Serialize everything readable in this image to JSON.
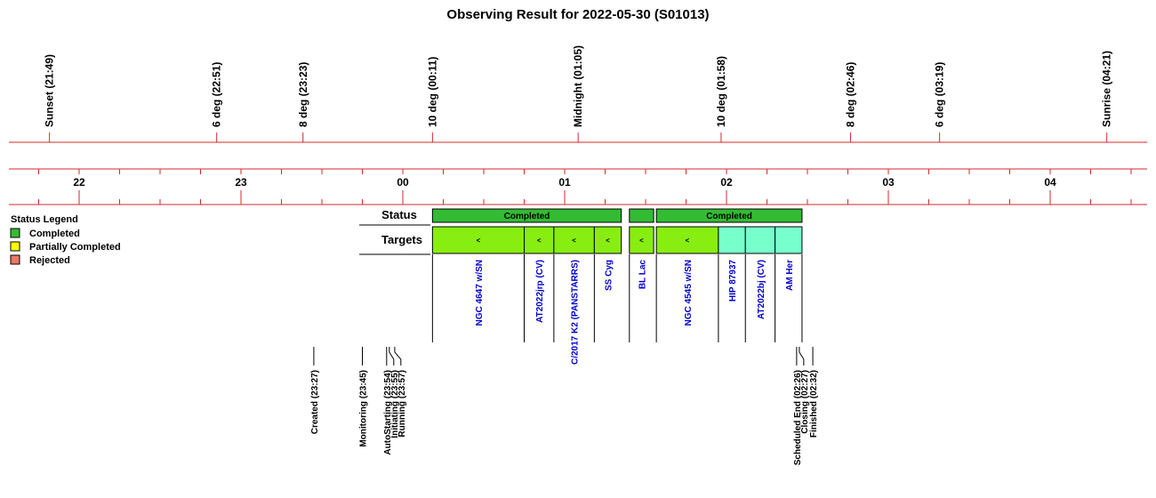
{
  "title": "Observing Result for 2022-05-30 (S01013)",
  "colors": {
    "axis_red": "#d32a2a",
    "completed": "#33bb33",
    "target_done": "#88ee11",
    "target_pending": "#77ffcc",
    "partial": "#ffff00",
    "rejected": "#ee7766",
    "target_text": "#0000cc"
  },
  "chart_data": {
    "type": "timeline",
    "x_unit": "hour",
    "x_range": [
      "21:30",
      "04:30"
    ],
    "hour_ticks": [
      "22",
      "23",
      "00",
      "01",
      "02",
      "03",
      "04"
    ],
    "sun_events": [
      {
        "label": "Sunset (21:49)",
        "time": "21:49"
      },
      {
        "label": "6 deg (22:51)",
        "time": "22:51"
      },
      {
        "label": "8 deg (23:23)",
        "time": "23:23"
      },
      {
        "label": "10 deg (00:11)",
        "time": "00:11"
      },
      {
        "label": "Midnight (01:05)",
        "time": "01:05"
      },
      {
        "label": "10 deg (01:58)",
        "time": "01:58"
      },
      {
        "label": "8 deg (02:46)",
        "time": "02:46"
      },
      {
        "label": "6 deg (03:19)",
        "time": "03:19"
      },
      {
        "label": "Sunrise (04:21)",
        "time": "04:21"
      }
    ],
    "status_label": "Status",
    "status_blocks": [
      {
        "start": "00:11",
        "end": "01:21",
        "label": "Completed",
        "status": "completed"
      },
      {
        "start": "01:24",
        "end": "01:33",
        "label": "",
        "status": "completed"
      },
      {
        "start": "01:34",
        "end": "02:28",
        "label": "Completed",
        "status": "completed"
      }
    ],
    "targets_label": "Targets",
    "targets": [
      {
        "name": "NGC 4647 w/SN",
        "start": "00:11",
        "end": "00:45",
        "done": true
      },
      {
        "name": "AT2022jrp (CV)",
        "start": "00:45",
        "end": "00:56",
        "done": true
      },
      {
        "name": "C/2017 K2 (PANSTARRS)",
        "start": "00:56",
        "end": "01:11",
        "done": true
      },
      {
        "name": "SS Cyg",
        "start": "01:11",
        "end": "01:21",
        "done": true
      },
      {
        "name": "BL Lac",
        "start": "01:24",
        "end": "01:33",
        "done": true
      },
      {
        "name": "NGC 4545 w/SN",
        "start": "01:34",
        "end": "01:57",
        "done": true
      },
      {
        "name": "HIP 87937",
        "start": "01:57",
        "end": "02:07",
        "done": false
      },
      {
        "name": "AT2022bj (CV)",
        "start": "02:07",
        "end": "02:18",
        "done": false
      },
      {
        "name": "AM Her",
        "start": "02:18",
        "end": "02:28",
        "done": false
      }
    ],
    "target_mark": "<",
    "events": [
      {
        "label": "Created (23:27)",
        "time": "23:27"
      },
      {
        "label": "Monitoring (23:45)",
        "time": "23:45"
      },
      {
        "label": "AutoStarting (23:54)",
        "time": "23:54"
      },
      {
        "label": "Initiating (23:55)",
        "time": "23:55"
      },
      {
        "label": "Running (23:57)",
        "time": "23:57"
      },
      {
        "label": "Scheduled End (02:26)",
        "time": "02:26"
      },
      {
        "label": "Closing (02:27)",
        "time": "02:27"
      },
      {
        "label": "Finished (02:32)",
        "time": "02:32"
      }
    ]
  },
  "legend": {
    "title": "Status Legend",
    "items": [
      {
        "label": "Completed",
        "key": "completed"
      },
      {
        "label": "Partially Completed",
        "key": "partial"
      },
      {
        "label": "Rejected",
        "key": "rejected"
      }
    ]
  }
}
